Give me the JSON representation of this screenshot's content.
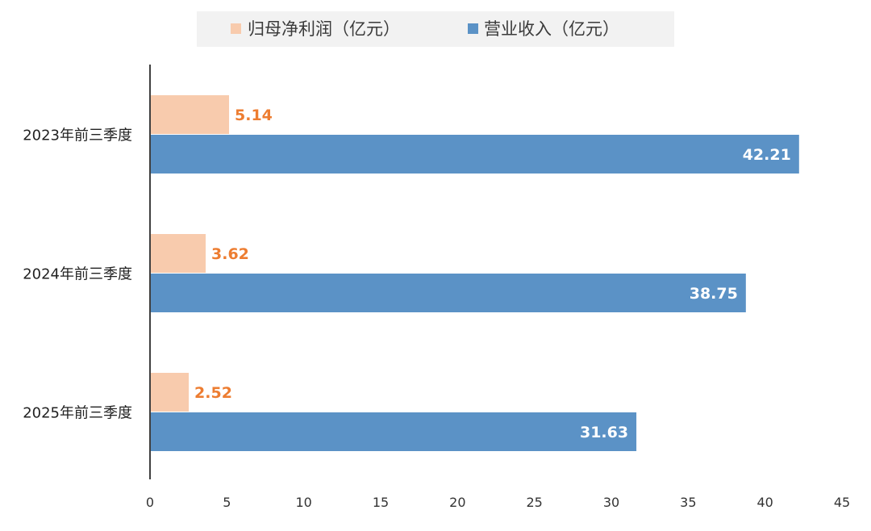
{
  "chart_data": {
    "type": "bar",
    "orientation": "horizontal",
    "categories": [
      "2023年前三季度",
      "2024年前三季度",
      "2025年前三季度"
    ],
    "series": [
      {
        "name": "归母净利润（亿元）",
        "values": [
          5.14,
          3.62,
          2.52
        ],
        "color": "#F8CBAD",
        "label_color": "#ED7D31"
      },
      {
        "name": "营业收入（亿元）",
        "values": [
          42.21,
          38.75,
          31.63
        ],
        "color": "#5B92C6",
        "label_color": "#FFFFFF"
      }
    ],
    "value_labels": [
      [
        "5.14",
        "3.62",
        "2.52"
      ],
      [
        "42.21",
        "38.75",
        "31.63"
      ]
    ],
    "xlim": [
      0,
      45
    ],
    "xticks": [
      "0",
      "5",
      "10",
      "15",
      "20",
      "25",
      "30",
      "35",
      "40",
      "45"
    ],
    "title": "",
    "xlabel": "",
    "ylabel": "",
    "grid": false,
    "legend_position": "top",
    "legend_background": "#F2F2F2",
    "axis_color": "#404040",
    "tick_label_color": "#333333",
    "category_label_color": "#222222"
  }
}
